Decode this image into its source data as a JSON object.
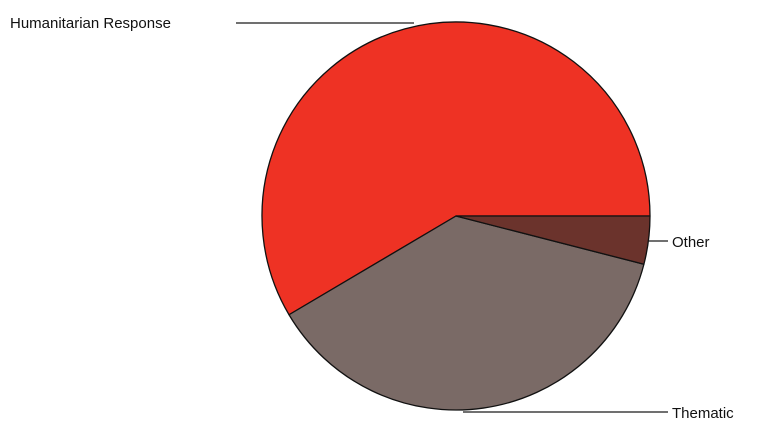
{
  "chart_data": {
    "type": "pie",
    "title": "",
    "start_angle_deg": 0,
    "direction": "counterclockwise",
    "slices": [
      {
        "label": "Humanitarian Response",
        "value": 58.5,
        "color": "#ee3224"
      },
      {
        "label": "Thematic",
        "value": 37.5,
        "color": "#7a6a66"
      },
      {
        "label": "Other",
        "value": 4.0,
        "color": "#6b332c"
      }
    ]
  }
}
